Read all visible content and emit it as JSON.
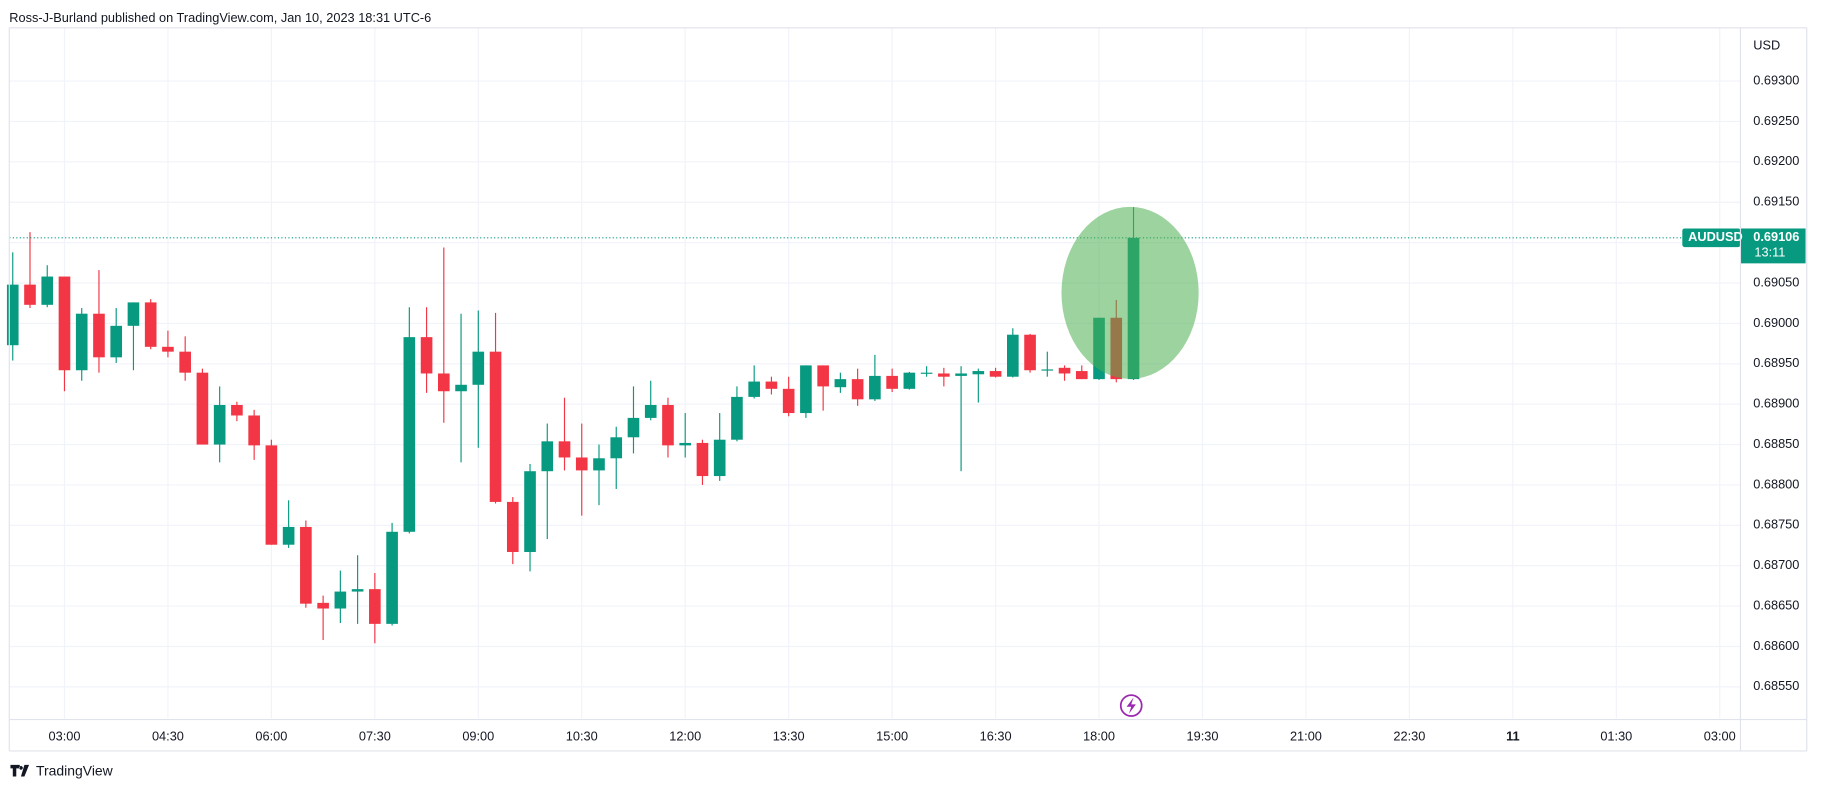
{
  "header": "Ross-J-Burland published on TradingView.com, Jan 10, 2023 18:31 UTC-6",
  "footer": "TradingView",
  "chart_data": {
    "type": "candlestick",
    "symbol": "AUDUSD",
    "currency": "USD",
    "last_price": 0.69106,
    "countdown": "13:11",
    "up_color": "#089981",
    "down_color": "#f23645",
    "grid": true,
    "x": [
      135,
      150,
      165,
      180,
      195,
      210,
      225,
      240,
      255,
      270,
      285,
      300,
      315,
      330,
      345,
      360,
      375,
      390,
      405,
      420,
      435,
      450,
      465,
      480,
      495,
      510,
      525,
      540,
      555,
      570,
      585,
      600,
      615,
      630,
      645,
      660,
      675,
      690,
      705,
      720,
      735,
      750,
      765,
      780,
      795,
      810,
      825,
      840,
      855,
      870,
      885,
      900,
      915,
      930,
      945,
      960,
      975,
      990,
      1005,
      1020,
      1035,
      1050,
      1065,
      1080,
      1095,
      1110
    ],
    "open": [
      0.68973,
      0.69048,
      0.69023,
      0.69058,
      0.68942,
      0.69012,
      0.68958,
      0.68997,
      0.69026,
      0.68971,
      0.68965,
      0.68939,
      0.6885,
      0.68899,
      0.68886,
      0.68849,
      0.68726,
      0.68748,
      0.68654,
      0.68647,
      0.68668,
      0.68671,
      0.68628,
      0.68742,
      0.68983,
      0.68938,
      0.68916,
      0.68924,
      0.68965,
      0.68779,
      0.68717,
      0.68817,
      0.68854,
      0.68834,
      0.68818,
      0.68833,
      0.68859,
      0.68883,
      0.68899,
      0.68849,
      0.68852,
      0.68811,
      0.68856,
      0.68909,
      0.68928,
      0.68919,
      0.68889,
      0.68948,
      0.68921,
      0.68931,
      0.68906,
      0.68935,
      0.68919,
      0.68938,
      0.68938,
      0.68935,
      0.68937,
      0.68941,
      0.68934,
      0.68986,
      0.68942,
      0.68945,
      0.68941,
      0.68931,
      0.69007,
      0.68931
    ],
    "high": [
      0.69088,
      0.69113,
      0.69072,
      0.69058,
      0.69019,
      0.69066,
      0.69019,
      0.69026,
      0.6903,
      0.68991,
      0.68984,
      0.68944,
      0.68922,
      0.68903,
      0.68893,
      0.68856,
      0.68781,
      0.68756,
      0.68663,
      0.68694,
      0.68713,
      0.68691,
      0.68753,
      0.6902,
      0.6902,
      0.69094,
      0.69012,
      0.69016,
      0.69013,
      0.68785,
      0.68826,
      0.68876,
      0.68908,
      0.68876,
      0.6885,
      0.68872,
      0.68922,
      0.68929,
      0.68908,
      0.68889,
      0.68856,
      0.68889,
      0.68922,
      0.68948,
      0.68934,
      0.68934,
      0.68948,
      0.68948,
      0.68939,
      0.68944,
      0.68961,
      0.68944,
      0.6894,
      0.68947,
      0.68945,
      0.68947,
      0.68944,
      0.68945,
      0.68994,
      0.68987,
      0.68965,
      0.68948,
      0.68948,
      0.69007,
      0.69029,
      0.69144
    ],
    "low": [
      0.68954,
      0.69019,
      0.6902,
      0.68916,
      0.68929,
      0.68939,
      0.68951,
      0.68942,
      0.68968,
      0.68958,
      0.68929,
      0.6885,
      0.68828,
      0.68879,
      0.68831,
      0.68726,
      0.68722,
      0.68648,
      0.68608,
      0.68629,
      0.68628,
      0.68604,
      0.68626,
      0.6874,
      0.68914,
      0.68877,
      0.68828,
      0.68846,
      0.68777,
      0.68702,
      0.68693,
      0.68733,
      0.68818,
      0.68762,
      0.68775,
      0.68795,
      0.68839,
      0.6888,
      0.68834,
      0.68834,
      0.688,
      0.68805,
      0.68854,
      0.68907,
      0.68912,
      0.68885,
      0.68883,
      0.68892,
      0.68914,
      0.68898,
      0.68904,
      0.68915,
      0.68918,
      0.68934,
      0.68922,
      0.68817,
      0.68902,
      0.68933,
      0.68933,
      0.68939,
      0.68934,
      0.68929,
      0.68931,
      0.6893,
      0.68927,
      0.6893
    ],
    "close": [
      0.69048,
      0.69023,
      0.69058,
      0.68942,
      0.69012,
      0.68958,
      0.68997,
      0.69026,
      0.68971,
      0.68965,
      0.68939,
      0.6885,
      0.68899,
      0.68886,
      0.68849,
      0.68726,
      0.68748,
      0.68653,
      0.68647,
      0.68668,
      0.68671,
      0.68628,
      0.68742,
      0.68983,
      0.68938,
      0.68916,
      0.68924,
      0.68965,
      0.68779,
      0.68717,
      0.68817,
      0.68854,
      0.68834,
      0.68818,
      0.68833,
      0.68859,
      0.68883,
      0.68899,
      0.68849,
      0.68852,
      0.68811,
      0.68856,
      0.68909,
      0.68928,
      0.68919,
      0.68889,
      0.68948,
      0.68922,
      0.68931,
      0.68906,
      0.68935,
      0.68919,
      0.68939,
      0.68939,
      0.68934,
      0.68938,
      0.68941,
      0.68934,
      0.68986,
      0.68942,
      0.68943,
      0.68938,
      0.68931,
      0.69007,
      0.68931,
      0.69106
    ],
    "xlim": [
      132,
      1638
    ],
    "xticks": [
      {
        "value": 180,
        "label": "03:00"
      },
      {
        "value": 270,
        "label": "04:30"
      },
      {
        "value": 360,
        "label": "06:00"
      },
      {
        "value": 450,
        "label": "07:30"
      },
      {
        "value": 540,
        "label": "09:00"
      },
      {
        "value": 630,
        "label": "10:30"
      },
      {
        "value": 720,
        "label": "12:00"
      },
      {
        "value": 810,
        "label": "13:30"
      },
      {
        "value": 900,
        "label": "15:00"
      },
      {
        "value": 990,
        "label": "16:30"
      },
      {
        "value": 1080,
        "label": "18:00"
      },
      {
        "value": 1170,
        "label": "19:30"
      },
      {
        "value": 1260,
        "label": "21:00"
      },
      {
        "value": 1350,
        "label": "22:30"
      },
      {
        "value": 1440,
        "label": "11"
      },
      {
        "value": 1530,
        "label": "01:30"
      },
      {
        "value": 1620,
        "label": "03:00"
      }
    ],
    "ylim": [
      0.68511,
      0.69366
    ],
    "yticks": [
      {
        "value": 0.6855,
        "label": "0.68550"
      },
      {
        "value": 0.686,
        "label": "0.68600"
      },
      {
        "value": 0.6865,
        "label": "0.68650"
      },
      {
        "value": 0.687,
        "label": "0.68700"
      },
      {
        "value": 0.6875,
        "label": "0.68750"
      },
      {
        "value": 0.688,
        "label": "0.68800"
      },
      {
        "value": 0.6885,
        "label": "0.68850"
      },
      {
        "value": 0.689,
        "label": "0.68900"
      },
      {
        "value": 0.6895,
        "label": "0.68950"
      },
      {
        "value": 0.69,
        "label": "0.69000"
      },
      {
        "value": 0.6905,
        "label": "0.69050"
      },
      {
        "value": 0.691,
        "label": "0.69100"
      },
      {
        "value": 0.6915,
        "label": "0.69150"
      },
      {
        "value": 0.692,
        "label": "0.69200"
      },
      {
        "value": 0.6925,
        "label": "0.69250"
      },
      {
        "value": 0.693,
        "label": "0.69300"
      }
    ]
  }
}
